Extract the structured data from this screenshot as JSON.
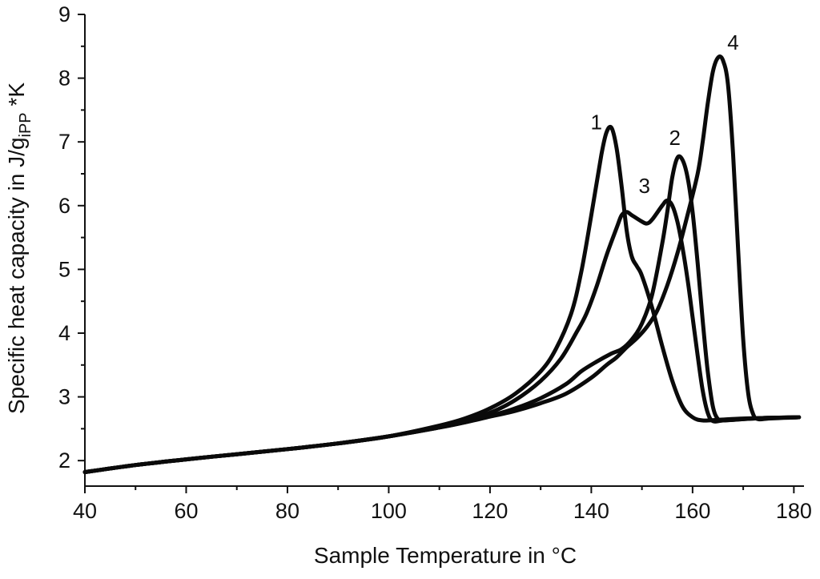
{
  "chart_data": {
    "type": "line",
    "title": "",
    "xlabel": "Sample Temperature in °C",
    "ylabel": {
      "main": "Specific heat capacity in J/g",
      "subscript": "iPP",
      "suffix": " *K"
    },
    "xlim": [
      40,
      182
    ],
    "ylim": [
      1.6,
      9
    ],
    "xticks": [
      40,
      60,
      80,
      100,
      120,
      140,
      160,
      180
    ],
    "yticks": [
      2,
      3,
      4,
      5,
      6,
      7,
      8,
      9
    ],
    "grid": false,
    "legend": "none",
    "series": [
      {
        "name": "1",
        "label_at": [
          141,
          7.2
        ],
        "points": [
          [
            40,
            1.82
          ],
          [
            50,
            1.93
          ],
          [
            60,
            2.02
          ],
          [
            70,
            2.1
          ],
          [
            80,
            2.18
          ],
          [
            90,
            2.27
          ],
          [
            100,
            2.38
          ],
          [
            110,
            2.55
          ],
          [
            115,
            2.66
          ],
          [
            120,
            2.82
          ],
          [
            125,
            3.05
          ],
          [
            130,
            3.4
          ],
          [
            133,
            3.75
          ],
          [
            136,
            4.3
          ],
          [
            138,
            4.95
          ],
          [
            140,
            5.85
          ],
          [
            142,
            6.8
          ],
          [
            143,
            7.15
          ],
          [
            144,
            7.22
          ],
          [
            145,
            6.9
          ],
          [
            146,
            6.3
          ],
          [
            147,
            5.6
          ],
          [
            148,
            5.2
          ],
          [
            149,
            5.05
          ],
          [
            150,
            4.9
          ],
          [
            152,
            4.4
          ],
          [
            154,
            3.8
          ],
          [
            156,
            3.25
          ],
          [
            158,
            2.85
          ],
          [
            160,
            2.68
          ],
          [
            162,
            2.63
          ],
          [
            165,
            2.64
          ],
          [
            170,
            2.66
          ],
          [
            175,
            2.67
          ],
          [
            181,
            2.68
          ]
        ]
      },
      {
        "name": "2",
        "label_at": [
          156.5,
          6.95
        ],
        "points": [
          [
            40,
            1.82
          ],
          [
            50,
            1.93
          ],
          [
            60,
            2.02
          ],
          [
            70,
            2.1
          ],
          [
            80,
            2.18
          ],
          [
            90,
            2.27
          ],
          [
            100,
            2.38
          ],
          [
            110,
            2.52
          ],
          [
            115,
            2.6
          ],
          [
            120,
            2.7
          ],
          [
            125,
            2.82
          ],
          [
            130,
            2.98
          ],
          [
            135,
            3.2
          ],
          [
            138,
            3.4
          ],
          [
            141,
            3.55
          ],
          [
            144,
            3.68
          ],
          [
            146,
            3.75
          ],
          [
            148,
            3.9
          ],
          [
            150,
            4.15
          ],
          [
            152,
            4.6
          ],
          [
            154,
            5.4
          ],
          [
            155,
            5.9
          ],
          [
            156,
            6.45
          ],
          [
            157,
            6.75
          ],
          [
            158,
            6.72
          ],
          [
            159,
            6.45
          ],
          [
            160,
            5.9
          ],
          [
            161,
            5.1
          ],
          [
            162,
            4.2
          ],
          [
            163,
            3.4
          ],
          [
            164,
            2.85
          ],
          [
            165,
            2.65
          ],
          [
            166,
            2.63
          ],
          [
            170,
            2.65
          ],
          [
            175,
            2.67
          ],
          [
            181,
            2.68
          ]
        ]
      },
      {
        "name": "3",
        "label_at": [
          150.5,
          6.2
        ],
        "points": [
          [
            40,
            1.82
          ],
          [
            50,
            1.93
          ],
          [
            60,
            2.02
          ],
          [
            70,
            2.1
          ],
          [
            80,
            2.18
          ],
          [
            90,
            2.27
          ],
          [
            100,
            2.38
          ],
          [
            110,
            2.54
          ],
          [
            115,
            2.63
          ],
          [
            120,
            2.75
          ],
          [
            125,
            2.95
          ],
          [
            130,
            3.25
          ],
          [
            134,
            3.6
          ],
          [
            137,
            4.0
          ],
          [
            139,
            4.3
          ],
          [
            141,
            4.72
          ],
          [
            143,
            5.22
          ],
          [
            145,
            5.65
          ],
          [
            146,
            5.85
          ],
          [
            147,
            5.9
          ],
          [
            148,
            5.85
          ],
          [
            150,
            5.75
          ],
          [
            151,
            5.72
          ],
          [
            152,
            5.78
          ],
          [
            154,
            6.0
          ],
          [
            155,
            6.08
          ],
          [
            156,
            6.0
          ],
          [
            157,
            5.75
          ],
          [
            158,
            5.35
          ],
          [
            159,
            4.85
          ],
          [
            160,
            4.25
          ],
          [
            161,
            3.65
          ],
          [
            162,
            3.1
          ],
          [
            163,
            2.75
          ],
          [
            164,
            2.62
          ],
          [
            166,
            2.63
          ],
          [
            170,
            2.65
          ],
          [
            175,
            2.67
          ],
          [
            181,
            2.68
          ]
        ]
      },
      {
        "name": "4",
        "label_at": [
          168,
          8.45
        ],
        "points": [
          [
            40,
            1.82
          ],
          [
            50,
            1.93
          ],
          [
            60,
            2.02
          ],
          [
            70,
            2.1
          ],
          [
            80,
            2.18
          ],
          [
            90,
            2.27
          ],
          [
            100,
            2.38
          ],
          [
            110,
            2.52
          ],
          [
            115,
            2.6
          ],
          [
            120,
            2.69
          ],
          [
            125,
            2.78
          ],
          [
            130,
            2.9
          ],
          [
            135,
            3.05
          ],
          [
            140,
            3.3
          ],
          [
            143,
            3.5
          ],
          [
            145,
            3.62
          ],
          [
            147,
            3.78
          ],
          [
            149,
            3.92
          ],
          [
            151,
            4.1
          ],
          [
            153,
            4.35
          ],
          [
            155,
            4.75
          ],
          [
            157,
            5.25
          ],
          [
            159,
            5.85
          ],
          [
            161,
            6.5
          ],
          [
            162,
            7.0
          ],
          [
            163,
            7.6
          ],
          [
            164,
            8.1
          ],
          [
            165,
            8.32
          ],
          [
            166,
            8.28
          ],
          [
            167,
            7.9
          ],
          [
            168,
            6.8
          ],
          [
            169,
            5.3
          ],
          [
            170,
            3.9
          ],
          [
            171,
            3.05
          ],
          [
            172,
            2.72
          ],
          [
            173,
            2.65
          ],
          [
            175,
            2.66
          ],
          [
            178,
            2.67
          ],
          [
            181,
            2.68
          ]
        ]
      }
    ]
  }
}
